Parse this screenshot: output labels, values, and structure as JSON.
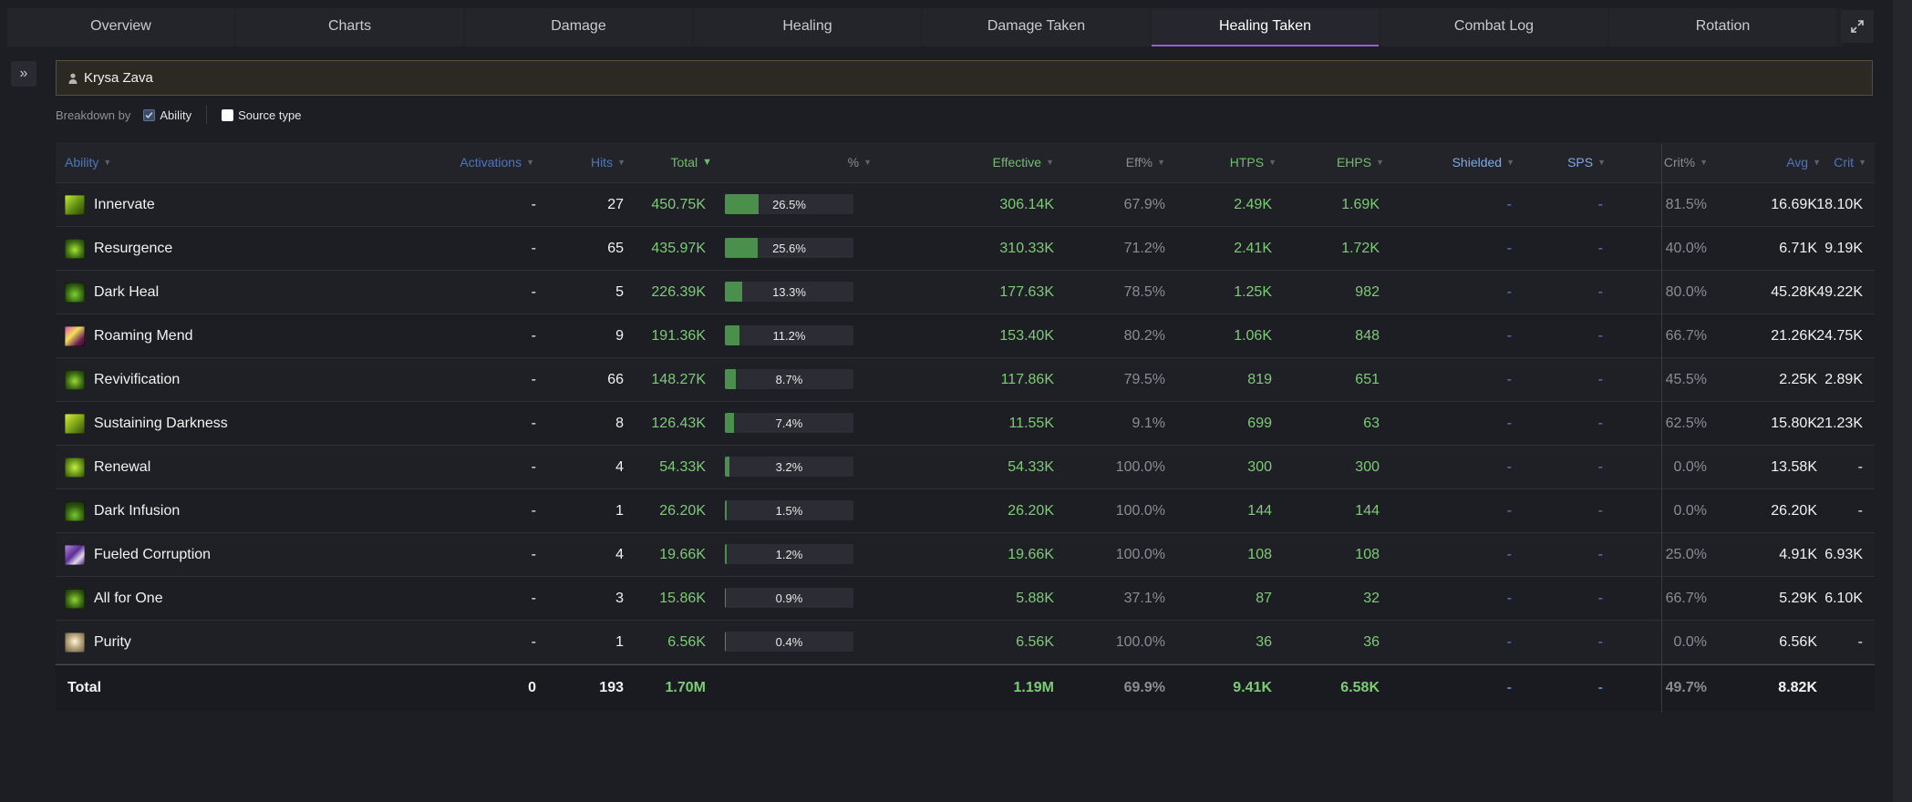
{
  "tabs": [
    "Overview",
    "Charts",
    "Damage",
    "Healing",
    "Damage Taken",
    "Healing Taken",
    "Combat Log",
    "Rotation"
  ],
  "active_tab": "Healing Taken",
  "player": {
    "name": "Krysa Zava"
  },
  "breakdown": {
    "label": "Breakdown by",
    "options": [
      {
        "label": "Ability",
        "checked": true
      },
      {
        "label": "Source type",
        "checked": false
      }
    ]
  },
  "table": {
    "headers": {
      "ability": "Ability",
      "activations": "Activations",
      "hits": "Hits",
      "total": "Total",
      "pct": "%",
      "effective": "Effective",
      "eff_pct": "Eff%",
      "htps": "HTPS",
      "ehps": "EHPS",
      "shielded": "Shielded",
      "sps": "SPS",
      "crit_pct": "Crit%",
      "avg": "Avg",
      "crit": "Crit"
    },
    "rows": [
      {
        "ability": "Innervate",
        "icon": "innervate-icon",
        "activations": "-",
        "hits": "27",
        "total": "450.75K",
        "pct": "26.5%",
        "pct_value": 26.5,
        "effective": "306.14K",
        "eff_pct": "67.9%",
        "htps": "2.49K",
        "ehps": "1.69K",
        "shielded": "-",
        "sps": "-",
        "crit_pct": "81.5%",
        "avg": "16.69K",
        "crit": "18.10K"
      },
      {
        "ability": "Resurgence",
        "icon": "resurgence-icon",
        "activations": "-",
        "hits": "65",
        "total": "435.97K",
        "pct": "25.6%",
        "pct_value": 25.6,
        "effective": "310.33K",
        "eff_pct": "71.2%",
        "htps": "2.41K",
        "ehps": "1.72K",
        "shielded": "-",
        "sps": "-",
        "crit_pct": "40.0%",
        "avg": "6.71K",
        "crit": "9.19K"
      },
      {
        "ability": "Dark Heal",
        "icon": "dark-heal-icon",
        "activations": "-",
        "hits": "5",
        "total": "226.39K",
        "pct": "13.3%",
        "pct_value": 13.3,
        "effective": "177.63K",
        "eff_pct": "78.5%",
        "htps": "1.25K",
        "ehps": "982",
        "shielded": "-",
        "sps": "-",
        "crit_pct": "80.0%",
        "avg": "45.28K",
        "crit": "49.22K"
      },
      {
        "ability": "Roaming Mend",
        "icon": "roaming-mend-icon",
        "activations": "-",
        "hits": "9",
        "total": "191.36K",
        "pct": "11.2%",
        "pct_value": 11.2,
        "effective": "153.40K",
        "eff_pct": "80.2%",
        "htps": "1.06K",
        "ehps": "848",
        "shielded": "-",
        "sps": "-",
        "crit_pct": "66.7%",
        "avg": "21.26K",
        "crit": "24.75K"
      },
      {
        "ability": "Revivification",
        "icon": "revivification-icon",
        "activations": "-",
        "hits": "66",
        "total": "148.27K",
        "pct": "8.7%",
        "pct_value": 8.7,
        "effective": "117.86K",
        "eff_pct": "79.5%",
        "htps": "819",
        "ehps": "651",
        "shielded": "-",
        "sps": "-",
        "crit_pct": "45.5%",
        "avg": "2.25K",
        "crit": "2.89K"
      },
      {
        "ability": "Sustaining Darkness",
        "icon": "sustaining-darkness-icon",
        "activations": "-",
        "hits": "8",
        "total": "126.43K",
        "pct": "7.4%",
        "pct_value": 7.4,
        "effective": "11.55K",
        "eff_pct": "9.1%",
        "htps": "699",
        "ehps": "63",
        "shielded": "-",
        "sps": "-",
        "crit_pct": "62.5%",
        "avg": "15.80K",
        "crit": "21.23K"
      },
      {
        "ability": "Renewal",
        "icon": "renewal-icon",
        "activations": "-",
        "hits": "4",
        "total": "54.33K",
        "pct": "3.2%",
        "pct_value": 3.2,
        "effective": "54.33K",
        "eff_pct": "100.0%",
        "htps": "300",
        "ehps": "300",
        "shielded": "-",
        "sps": "-",
        "crit_pct": "0.0%",
        "avg": "13.58K",
        "crit": "-"
      },
      {
        "ability": "Dark Infusion",
        "icon": "dark-infusion-icon",
        "activations": "-",
        "hits": "1",
        "total": "26.20K",
        "pct": "1.5%",
        "pct_value": 1.5,
        "effective": "26.20K",
        "eff_pct": "100.0%",
        "htps": "144",
        "ehps": "144",
        "shielded": "-",
        "sps": "-",
        "crit_pct": "0.0%",
        "avg": "26.20K",
        "crit": "-"
      },
      {
        "ability": "Fueled Corruption",
        "icon": "fueled-corruption-icon",
        "activations": "-",
        "hits": "4",
        "total": "19.66K",
        "pct": "1.2%",
        "pct_value": 1.2,
        "effective": "19.66K",
        "eff_pct": "100.0%",
        "htps": "108",
        "ehps": "108",
        "shielded": "-",
        "sps": "-",
        "crit_pct": "25.0%",
        "avg": "4.91K",
        "crit": "6.93K"
      },
      {
        "ability": "All for One",
        "icon": "all-for-one-icon",
        "activations": "-",
        "hits": "3",
        "total": "15.86K",
        "pct": "0.9%",
        "pct_value": 0.9,
        "effective": "5.88K",
        "eff_pct": "37.1%",
        "htps": "87",
        "ehps": "32",
        "shielded": "-",
        "sps": "-",
        "crit_pct": "66.7%",
        "avg": "5.29K",
        "crit": "6.10K"
      },
      {
        "ability": "Purity",
        "icon": "purity-icon",
        "activations": "-",
        "hits": "1",
        "total": "6.56K",
        "pct": "0.4%",
        "pct_value": 0.4,
        "effective": "6.56K",
        "eff_pct": "100.0%",
        "htps": "36",
        "ehps": "36",
        "shielded": "-",
        "sps": "-",
        "crit_pct": "0.0%",
        "avg": "6.56K",
        "crit": "-"
      }
    ],
    "total": {
      "label": "Total",
      "activations": "0",
      "hits": "193",
      "total": "1.70M",
      "effective": "1.19M",
      "eff_pct": "69.9%",
      "htps": "9.41K",
      "ehps": "6.58K",
      "shielded": "-",
      "sps": "-",
      "crit_pct": "49.7%",
      "avg": "8.82K",
      "crit": ""
    }
  },
  "colors": {
    "accent": "#9a5bd8",
    "green": "#7ecb77",
    "bar_fill": "#4a8f4c",
    "blue": "#5a83c6"
  }
}
